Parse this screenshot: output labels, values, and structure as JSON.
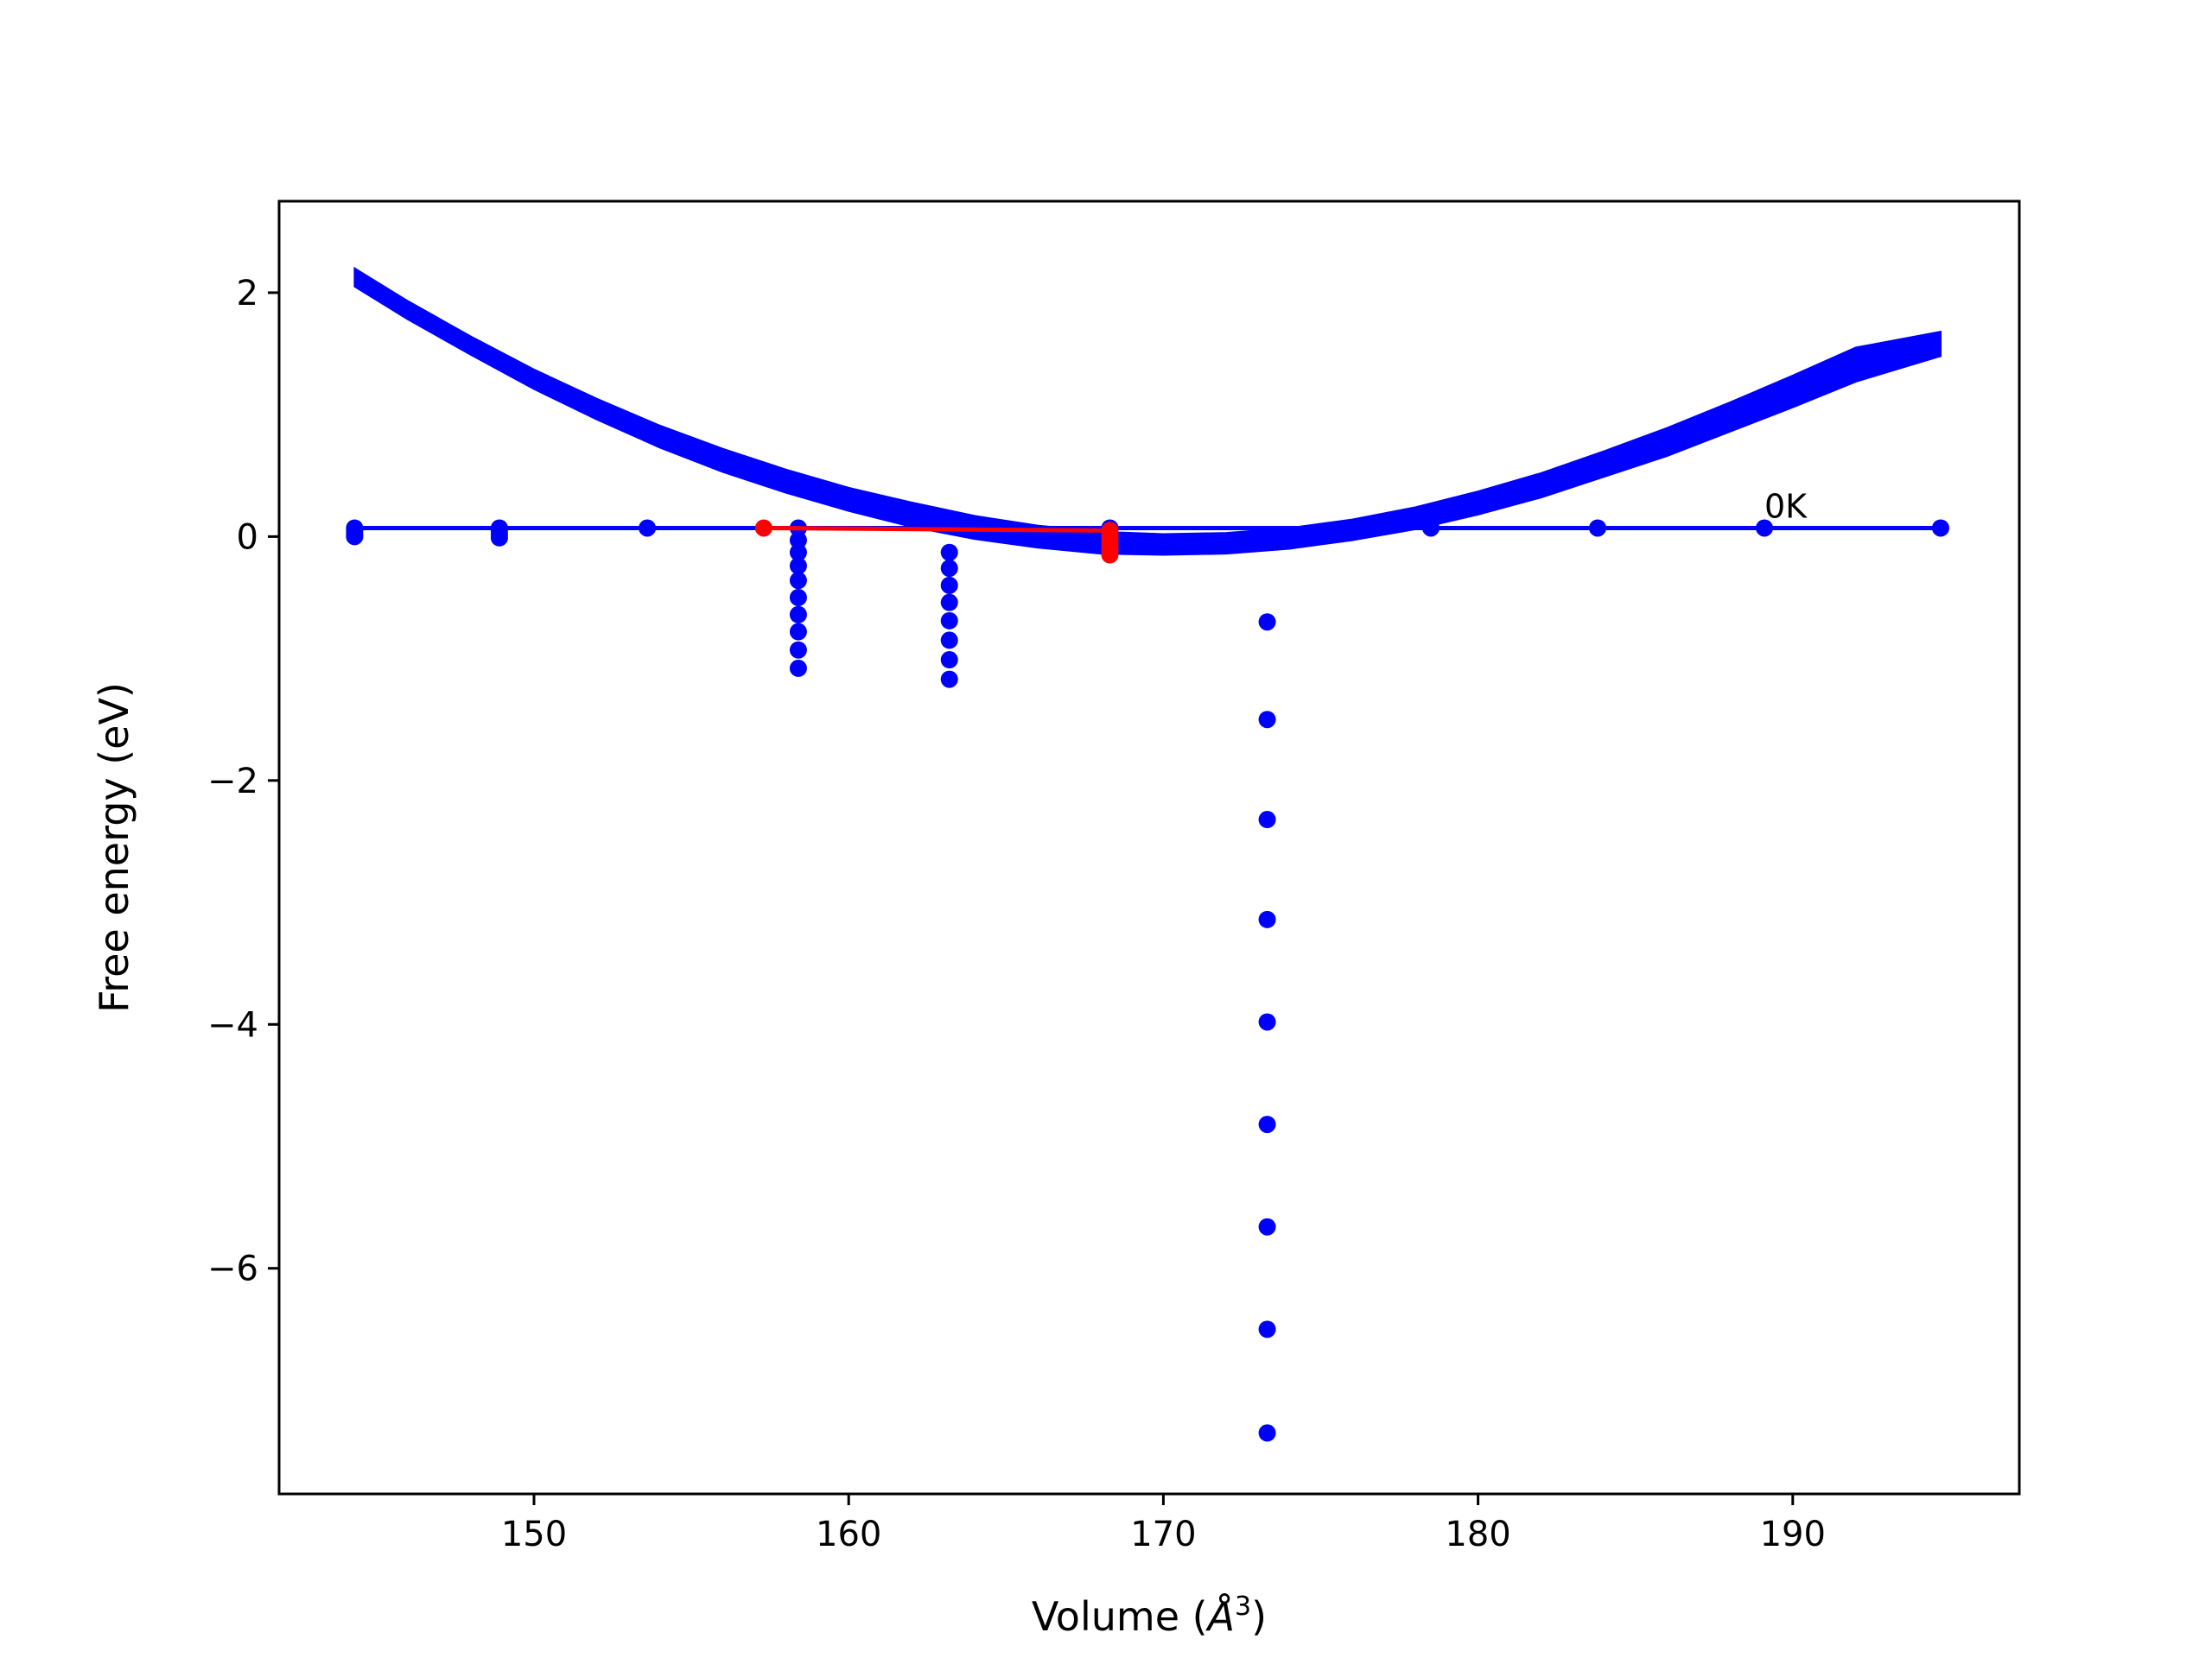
{
  "chart_data": {
    "type": "scatter",
    "xlabel": "Volume (",
    "xlabel_unit": "Å",
    "xlabel_sup": "3",
    "xlabel_close": ")",
    "ylabel": "Free energy (eV)",
    "xlim": [
      141.9,
      197.2
    ],
    "ylim": [
      -7.85,
      2.75
    ],
    "grid": false,
    "xticks": [
      150,
      160,
      170,
      180,
      190
    ],
    "xtick_labels": [
      "150",
      "160",
      "170",
      "180",
      "190"
    ],
    "yticks": [
      2,
      0,
      -2,
      -4,
      -6
    ],
    "ytick_labels": [
      "2",
      "0",
      "−2",
      "−4",
      "−6"
    ],
    "annotation": {
      "text": "0K",
      "x": 189.1,
      "y": 0.07
    },
    "colors": {
      "blue": "#0000ff",
      "red": "#ff0000"
    },
    "series": [
      {
        "kind": "band",
        "color": "#0000ff",
        "x_start": 144.3,
        "x_end": 194.7,
        "upper": [
          [
            144.3,
            2.2
          ],
          [
            146,
            1.93
          ],
          [
            148,
            1.64
          ],
          [
            150,
            1.37
          ],
          [
            152,
            1.13
          ],
          [
            154,
            0.91
          ],
          [
            156,
            0.72
          ],
          [
            158,
            0.55
          ],
          [
            160,
            0.4
          ],
          [
            162,
            0.28
          ],
          [
            164,
            0.17
          ],
          [
            166,
            0.09
          ],
          [
            168,
            0.04
          ],
          [
            170,
            0.02
          ],
          [
            172,
            0.03
          ],
          [
            174,
            0.07
          ],
          [
            176,
            0.14
          ],
          [
            178,
            0.24
          ],
          [
            180,
            0.37
          ],
          [
            182,
            0.52
          ],
          [
            184,
            0.7
          ],
          [
            186,
            0.89
          ],
          [
            188,
            1.1
          ],
          [
            190,
            1.32
          ],
          [
            192,
            1.55
          ],
          [
            194.7,
            1.68
          ]
        ],
        "lower": [
          [
            144.3,
            2.05
          ],
          [
            146,
            1.78
          ],
          [
            148,
            1.49
          ],
          [
            150,
            1.21
          ],
          [
            152,
            0.96
          ],
          [
            154,
            0.73
          ],
          [
            156,
            0.53
          ],
          [
            158,
            0.36
          ],
          [
            160,
            0.21
          ],
          [
            162,
            0.08
          ],
          [
            164,
            -0.02
          ],
          [
            166,
            -0.09
          ],
          [
            168,
            -0.14
          ],
          [
            170,
            -0.15
          ],
          [
            172,
            -0.14
          ],
          [
            174,
            -0.1
          ],
          [
            176,
            -0.03
          ],
          [
            178,
            0.06
          ],
          [
            180,
            0.18
          ],
          [
            182,
            0.32
          ],
          [
            184,
            0.49
          ],
          [
            186,
            0.66
          ],
          [
            188,
            0.86
          ],
          [
            190,
            1.06
          ],
          [
            192,
            1.27
          ],
          [
            194.7,
            1.48
          ]
        ]
      },
      {
        "kind": "line",
        "color": "#0000ff",
        "points": [
          [
            144.3,
            0.07
          ],
          [
            194.7,
            0.07
          ]
        ]
      },
      {
        "kind": "scatter",
        "color": "#0000ff",
        "points": [
          [
            144.3,
            0.07
          ],
          [
            144.3,
            0.05
          ],
          [
            144.3,
            0.02
          ],
          [
            144.3,
            0.0
          ],
          [
            148.9,
            0.07
          ],
          [
            148.9,
            0.05
          ],
          [
            148.9,
            0.02
          ],
          [
            148.9,
            -0.01
          ],
          [
            153.6,
            0.07
          ],
          [
            158.4,
            0.07
          ],
          [
            158.4,
            -0.03
          ],
          [
            158.4,
            -0.13
          ],
          [
            158.4,
            -0.24
          ],
          [
            158.4,
            -0.36
          ],
          [
            158.4,
            -0.5
          ],
          [
            158.4,
            -0.64
          ],
          [
            158.4,
            -0.78
          ],
          [
            158.4,
            -0.93
          ],
          [
            158.4,
            -1.08
          ],
          [
            163.2,
            -0.13
          ],
          [
            163.2,
            -0.26
          ],
          [
            163.2,
            -0.4
          ],
          [
            163.2,
            -0.54
          ],
          [
            163.2,
            -0.69
          ],
          [
            163.2,
            -0.85
          ],
          [
            163.2,
            -1.01
          ],
          [
            163.2,
            -1.17
          ],
          [
            168.3,
            0.07
          ],
          [
            173.3,
            -0.7
          ],
          [
            173.3,
            -1.5
          ],
          [
            173.3,
            -2.32
          ],
          [
            173.3,
            -3.14
          ],
          [
            173.3,
            -3.98
          ],
          [
            173.3,
            -4.82
          ],
          [
            173.3,
            -5.66
          ],
          [
            173.3,
            -6.5
          ],
          [
            173.3,
            -7.35
          ],
          [
            178.5,
            0.07
          ],
          [
            183.8,
            0.07
          ],
          [
            189.1,
            0.07
          ],
          [
            194.7,
            0.07
          ]
        ]
      },
      {
        "kind": "line",
        "color": "#ff0000",
        "points": [
          [
            157.3,
            0.07
          ],
          [
            168.3,
            0.05
          ]
        ]
      },
      {
        "kind": "scatter",
        "color": "#ff0000",
        "points": [
          [
            157.3,
            0.07
          ],
          [
            168.3,
            0.05
          ],
          [
            168.3,
            0.01
          ],
          [
            168.3,
            -0.03
          ],
          [
            168.3,
            -0.07
          ],
          [
            168.3,
            -0.11
          ],
          [
            168.3,
            -0.15
          ]
        ]
      }
    ]
  }
}
